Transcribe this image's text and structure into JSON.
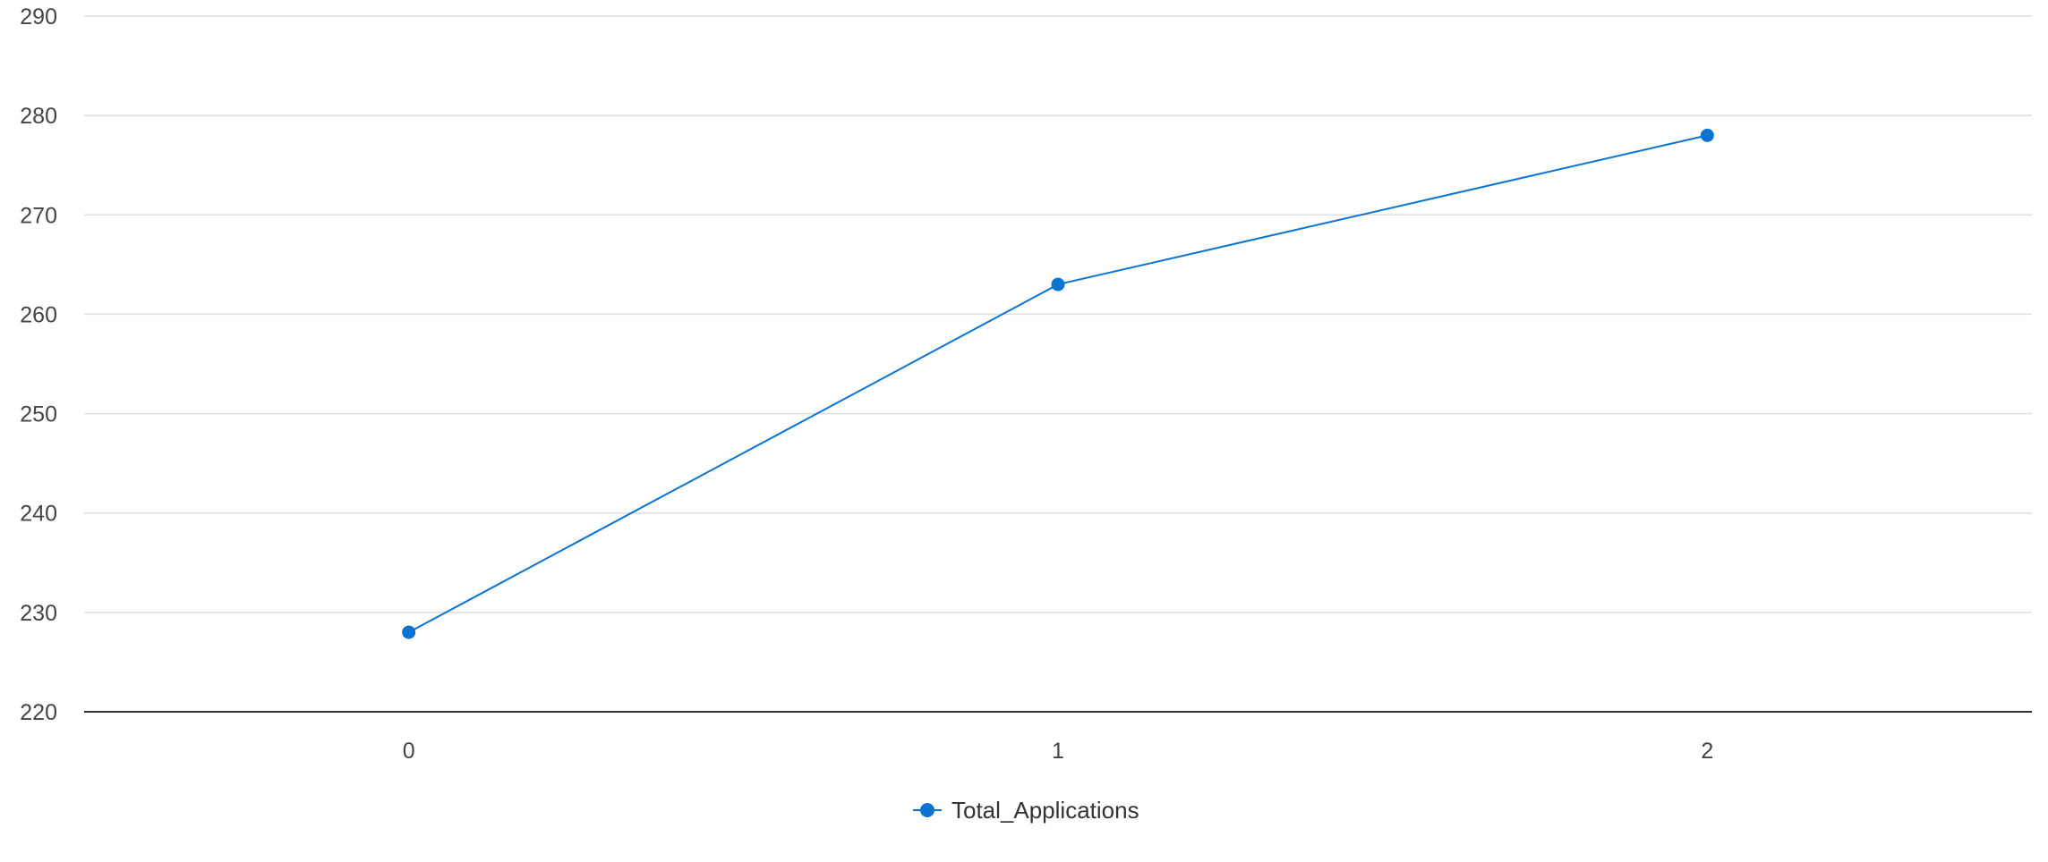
{
  "chart_data": {
    "type": "line",
    "title": "",
    "xlabel": "",
    "ylabel": "",
    "categories": [
      "0",
      "1",
      "2"
    ],
    "series": [
      {
        "name": "Total_Applications",
        "values": [
          228,
          263,
          278
        ],
        "color": "#0b74d1"
      }
    ],
    "ylim": [
      220,
      290
    ],
    "yticks": [
      220,
      230,
      240,
      250,
      260,
      270,
      280,
      290
    ],
    "grid": true,
    "legend_position": "bottom-center"
  },
  "colors": {
    "series_line": "#0b74d1",
    "marker": "#0b74d1",
    "grid": "#dddddd",
    "axis": "#333333",
    "tick_text": "#444444"
  }
}
